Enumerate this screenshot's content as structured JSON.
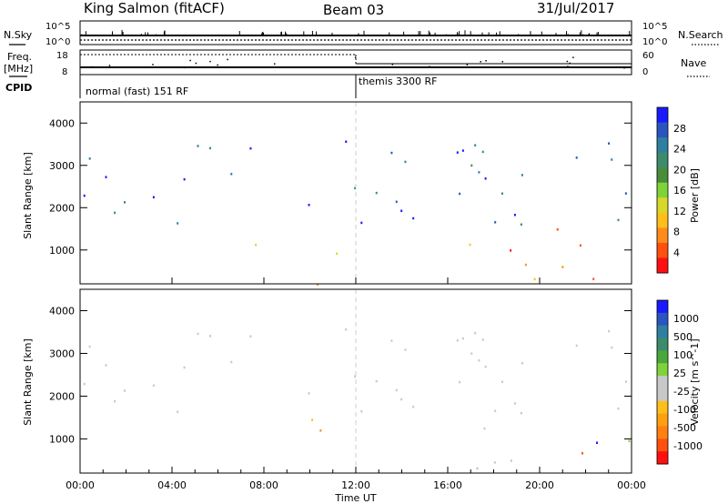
{
  "header": {
    "station": "King Salmon (fitACF)",
    "beam": "Beam 03",
    "date": "31/Jul/2017"
  },
  "panels": {
    "nsky": {
      "label": "N.Sky",
      "ticks": [
        "10^5",
        "10^0"
      ]
    },
    "nsearch": {
      "label": "N.Search",
      "ticks": [
        "10^5",
        "10^0"
      ]
    },
    "freq": {
      "label_lines": [
        "Freq.",
        "[MHz]"
      ],
      "ticks": [
        "18",
        "8"
      ]
    },
    "nave": {
      "label": "Nave",
      "ticks": [
        "60",
        "0"
      ]
    },
    "cpid": {
      "label": "CPID",
      "segments": [
        {
          "text": "normal (fast) 151 RF",
          "start": 0,
          "end": 12
        },
        {
          "text": "themis 3300 RF",
          "start": 12,
          "end": 24
        }
      ]
    }
  },
  "chart_data": [
    {
      "type": "heatmap",
      "name": "power",
      "ylabel": "Slant Range [km]",
      "xlabel": "Time UT",
      "x_range_hours": [
        0,
        24
      ],
      "ylim": [
        200,
        4500
      ],
      "y_ticks": [
        1000,
        2000,
        3000,
        4000
      ],
      "x_ticks": [
        "00:00",
        "04:00",
        "08:00",
        "12:00",
        "16:00",
        "20:00",
        "00:00"
      ],
      "colorbar": {
        "label": "Power [dB]",
        "ticks": [
          "28",
          "24",
          "20",
          "16",
          "12",
          "8",
          "4"
        ],
        "colors": [
          "#1a1aff",
          "#2a55c0",
          "#2e7fa0",
          "#3c8c6c",
          "#4a8c3a",
          "#7fd33a",
          "#d8d82a",
          "#ffbf1a",
          "#ff8c1a",
          "#ff5010",
          "#ff1010"
        ]
      },
      "echo_regions": [
        {
          "t0": 0.5,
          "t1": 1.8,
          "r0": 950,
          "r1": 1150,
          "intensity": 0.35
        },
        {
          "t0": 3.5,
          "t1": 5.2,
          "r0": 950,
          "r1": 1200,
          "intensity": 0.55
        },
        {
          "t0": 7.0,
          "t1": 11.5,
          "r0": 800,
          "r1": 1500,
          "intensity": 0.65
        },
        {
          "t0": 8.5,
          "t1": 10.5,
          "r0": 950,
          "r1": 1250,
          "intensity": 0.9
        },
        {
          "t0": 15.0,
          "t1": 17.5,
          "r0": 300,
          "r1": 1200,
          "intensity": 0.6
        },
        {
          "t0": 16.0,
          "t1": 17.0,
          "r0": 400,
          "r1": 700,
          "intensity": 0.95
        },
        {
          "t0": 17.5,
          "t1": 23.9,
          "r0": 300,
          "r1": 1900,
          "intensity": 0.25
        },
        {
          "t0": 0.0,
          "t1": 24.0,
          "r0": 200,
          "r1": 350,
          "intensity": 0.3
        }
      ]
    },
    {
      "type": "heatmap",
      "name": "velocity",
      "ylabel": "Slant Range [km]",
      "xlabel": "Time UT",
      "x_range_hours": [
        0,
        24
      ],
      "ylim": [
        200,
        4500
      ],
      "y_ticks": [
        1000,
        2000,
        3000,
        4000
      ],
      "x_ticks": [
        "00:00",
        "04:00",
        "08:00",
        "12:00",
        "16:00",
        "20:00",
        "00:00"
      ],
      "colorbar": {
        "label": "Velocity [m s^-1]",
        "ticks": [
          "1000",
          "500",
          "100",
          "25",
          "-25",
          "-100",
          "-500",
          "-1000"
        ],
        "colors": [
          "#1a1aff",
          "#2a55c0",
          "#2e7fa0",
          "#3c8c6c",
          "#4aa83a",
          "#7fd33a",
          "#c8c8c8",
          "#c8c8c8",
          "#ffbf1a",
          "#ffa010",
          "#ff8010",
          "#ff5010",
          "#ff1010"
        ]
      },
      "echo_regions": [
        {
          "t0": 0.5,
          "t1": 1.8,
          "r0": 950,
          "r1": 1150,
          "vclass": "ground"
        },
        {
          "t0": 3.5,
          "t1": 5.2,
          "r0": 950,
          "r1": 1200,
          "vclass": "ground"
        },
        {
          "t0": 7.0,
          "t1": 11.5,
          "r0": 800,
          "r1": 1500,
          "vclass": "negative"
        },
        {
          "t0": 15.0,
          "t1": 17.5,
          "r0": 300,
          "r1": 1200,
          "vclass": "ground"
        },
        {
          "t0": 17.5,
          "t1": 23.9,
          "r0": 300,
          "r1": 1900,
          "vclass": "mixed"
        },
        {
          "t0": 13.0,
          "t1": 14.0,
          "r0": 300,
          "r1": 500,
          "vclass": "negative"
        }
      ]
    }
  ]
}
